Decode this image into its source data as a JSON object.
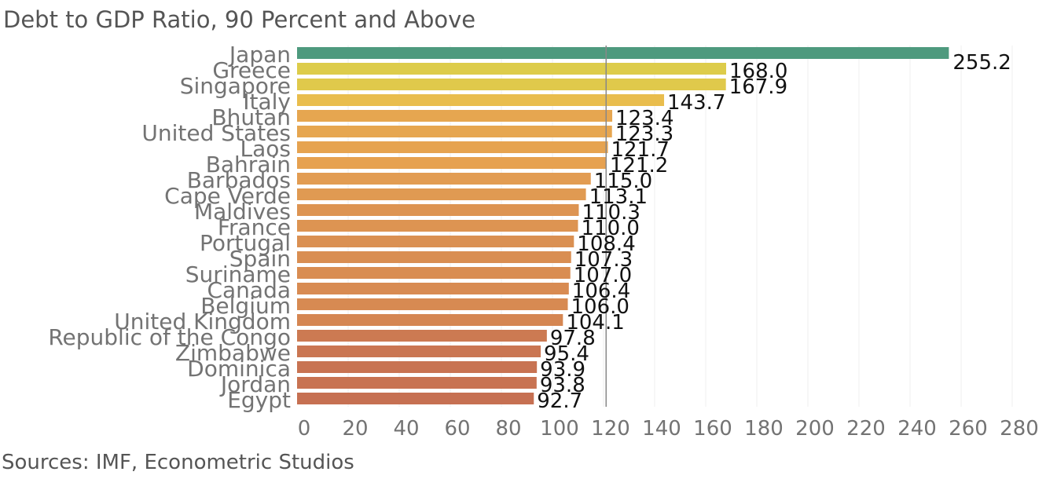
{
  "title": "Debt to GDP Ratio, 90 Percent and Above",
  "source": "Sources: IMF, Econometric Studios",
  "chart_data": {
    "type": "bar",
    "orientation": "horizontal",
    "title": "Debt to GDP Ratio, 90 Percent and Above",
    "xlabel": "",
    "ylabel": "",
    "xlim": [
      0,
      290
    ],
    "grid": true,
    "reference_line": 121.0,
    "categories": [
      "Japan",
      "Greece",
      "Singapore",
      "Italy",
      "Bhutan",
      "United States",
      "Laos",
      "Bahrain",
      "Barbados",
      "Cape Verde",
      "Maldives",
      "France",
      "Portugal",
      "Spain",
      "Suriname",
      "Canada",
      "Belgium",
      "United Kingdom",
      "Republic of the Congo",
      "Zimbabwe",
      "Dominica",
      "Jordan",
      "Egypt"
    ],
    "values": [
      255.2,
      168.0,
      167.9,
      143.7,
      123.4,
      123.3,
      121.7,
      121.2,
      115.0,
      113.1,
      110.3,
      110.0,
      108.4,
      107.3,
      107.0,
      106.4,
      106.0,
      104.1,
      97.8,
      95.4,
      93.9,
      93.8,
      92.7
    ],
    "value_labels": [
      "255.2",
      "168.0",
      "167.9",
      "143.7",
      "123.4",
      "123.3",
      "121.7",
      "121.2",
      "115.0",
      "113.1",
      "110.3",
      "110.0",
      "108.4",
      "107.3",
      "107.0",
      "106.4",
      "106.0",
      "104.1",
      "97.8",
      "95.4",
      "93.9",
      "93.8",
      "92.7"
    ],
    "x_ticks": [
      "0",
      "20",
      "40",
      "60",
      "80",
      "100",
      "120",
      "140",
      "160",
      "180",
      "200",
      "220",
      "240",
      "260",
      "280"
    ],
    "colors": [
      "#4e9a7e",
      "#ddcc4a",
      "#e0c94b",
      "#e9bd4d",
      "#e6a650",
      "#e6a650",
      "#e6a350",
      "#e6a150",
      "#e29c52",
      "#e09a52",
      "#dd9452",
      "#dd9452",
      "#da9052",
      "#d98e52",
      "#d98d52",
      "#d88b52",
      "#d78a52",
      "#d58652",
      "#cc7a52",
      "#ca7652",
      "#c87352",
      "#c87352",
      "#c67052"
    ]
  }
}
